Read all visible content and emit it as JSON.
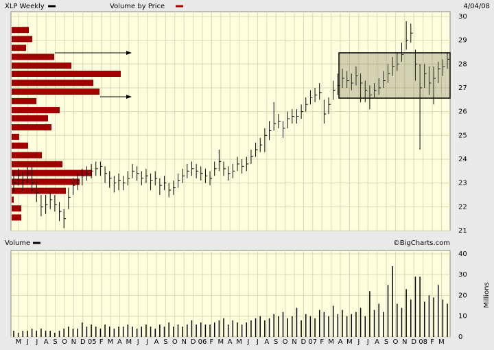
{
  "chart_data": [
    {
      "type": "ohlc",
      "title": "XLP Weekly",
      "legend_color": "#000000",
      "date": "4/04/08",
      "categories": [
        "M",
        "J",
        "J",
        "A",
        "S",
        "O",
        "N",
        "D",
        "05",
        "F",
        "M",
        "A",
        "M",
        "J",
        "J",
        "A",
        "S",
        "O",
        "N",
        "D",
        "06",
        "F",
        "M",
        "A",
        "M",
        "J",
        "J",
        "A",
        "S",
        "O",
        "N",
        "D",
        "07",
        "F",
        "M",
        "A",
        "M",
        "J",
        "J",
        "A",
        "S",
        "O",
        "N",
        "D",
        "08",
        "F",
        "M"
      ],
      "high": [
        23.5,
        23.6,
        23.5,
        23.7,
        23.7,
        23.1,
        22.5,
        22.5,
        22.6,
        22.5,
        22.2,
        21.9,
        22.8,
        23.2,
        23.4,
        23.6,
        23.7,
        23.8,
        23.9,
        23.9,
        23.7,
        23.5,
        23.3,
        23.4,
        23.3,
        23.5,
        23.8,
        23.7,
        23.5,
        23.6,
        23.4,
        23.5,
        23.2,
        23.3,
        23.0,
        23.1,
        23.4,
        23.6,
        23.8,
        23.9,
        23.8,
        23.7,
        23.6,
        23.5,
        23.9,
        24.4,
        23.9,
        23.7,
        23.8,
        24.1,
        24.0,
        24.1,
        24.4,
        24.7,
        24.9,
        25.3,
        25.6,
        26.4,
        25.9,
        25.6,
        26.0,
        26.1,
        26.1,
        26.3,
        26.6,
        26.9,
        27.0,
        27.2,
        26.5,
        26.6,
        27.3,
        27.6,
        27.8,
        27.7,
        27.6,
        27.9,
        27.6,
        27.3,
        27.1,
        27.2,
        27.4,
        27.7,
        28.0,
        28.3,
        28.5,
        28.9,
        29.8,
        29.7,
        28.6,
        28.0,
        28.0,
        27.9,
        27.9,
        28.1,
        28.2,
        28.5
      ],
      "low": [
        22.6,
        22.9,
        22.7,
        23.0,
        22.6,
        22.2,
        21.6,
        21.7,
        21.9,
        21.8,
        21.4,
        21.1,
        21.9,
        22.5,
        22.7,
        22.9,
        23.1,
        23.2,
        23.3,
        23.3,
        23.0,
        22.8,
        22.6,
        22.7,
        22.7,
        22.9,
        23.2,
        23.1,
        22.9,
        23.0,
        22.7,
        22.9,
        22.5,
        22.7,
        22.4,
        22.5,
        22.8,
        23.0,
        23.2,
        23.3,
        23.2,
        23.1,
        23.0,
        22.9,
        23.3,
        23.5,
        23.3,
        23.1,
        23.2,
        23.5,
        23.4,
        23.5,
        23.8,
        24.1,
        24.3,
        24.3,
        24.8,
        25.2,
        25.3,
        24.9,
        25.3,
        25.5,
        25.5,
        25.7,
        26.0,
        26.3,
        26.4,
        26.5,
        25.5,
        25.9,
        26.5,
        26.7,
        27.0,
        27.0,
        26.9,
        27.1,
        26.4,
        26.4,
        26.1,
        26.6,
        26.7,
        27.0,
        27.2,
        27.5,
        27.7,
        28.1,
        28.6,
        28.9,
        27.3,
        24.4,
        27.0,
        26.7,
        26.3,
        27.2,
        27.5,
        27.8
      ],
      "close": [
        23.0,
        23.3,
        23.1,
        23.4,
        23.0,
        22.6,
        22.0,
        22.1,
        22.3,
        22.1,
        21.8,
        21.5,
        22.4,
        22.9,
        23.1,
        23.3,
        23.4,
        23.5,
        23.6,
        23.7,
        23.4,
        23.2,
        23.0,
        23.1,
        23.0,
        23.2,
        23.5,
        23.4,
        23.2,
        23.3,
        23.1,
        23.2,
        22.9,
        23.0,
        22.7,
        22.8,
        23.1,
        23.3,
        23.5,
        23.6,
        23.5,
        23.4,
        23.3,
        23.2,
        23.6,
        23.9,
        23.6,
        23.4,
        23.5,
        23.8,
        23.7,
        23.8,
        24.1,
        24.4,
        24.6,
        25.0,
        25.2,
        25.5,
        25.6,
        25.3,
        25.7,
        25.8,
        25.8,
        26.0,
        26.3,
        26.6,
        26.7,
        26.8,
        25.9,
        26.3,
        26.9,
        27.1,
        27.4,
        27.3,
        27.2,
        27.5,
        27.2,
        26.9,
        26.7,
        26.9,
        27.0,
        27.3,
        27.6,
        27.9,
        28.0,
        28.4,
        29.0,
        29.3,
        28.0,
        27.0,
        27.6,
        27.2,
        27.4,
        27.8,
        27.9,
        28.2
      ],
      "volume_by_price": {
        "name": "Volume by Price",
        "color": "#a00000",
        "price_levels": [
          29.43,
          29.05,
          28.68,
          28.3,
          27.93,
          27.59,
          27.21,
          26.84,
          26.44,
          26.06,
          25.72,
          25.34,
          24.94,
          24.57,
          24.17,
          23.79,
          23.42,
          23.05,
          22.67,
          22.3,
          21.93,
          21.55
        ],
        "values": [
          25,
          30,
          21,
          62,
          87,
          159,
          119,
          128,
          36,
          70,
          53,
          58,
          11,
          24,
          44,
          74,
          117,
          99,
          79,
          3,
          14,
          14
        ]
      },
      "ylim": [
        21,
        30.2
      ],
      "yticks": [
        21,
        22,
        23,
        24,
        25,
        26,
        27,
        28,
        29,
        30
      ],
      "grid": true
    },
    {
      "type": "bar",
      "title": "Volume",
      "legend_color": "#000000",
      "credit": "©BigCharts.com",
      "ylabel": "Millions",
      "color": "#000000",
      "values": [
        3,
        2,
        3,
        3,
        4,
        3,
        4,
        3,
        3,
        2,
        3,
        4,
        5,
        4,
        4,
        7,
        5,
        6,
        5,
        4,
        6,
        5,
        4,
        5,
        5,
        6,
        5,
        4,
        5,
        6,
        5,
        4,
        6,
        5,
        7,
        5,
        6,
        5,
        6,
        8,
        6,
        7,
        6,
        6,
        7,
        8,
        9,
        6,
        8,
        7,
        6,
        7,
        8,
        9,
        10,
        8,
        9,
        11,
        10,
        12,
        9,
        10,
        14,
        8,
        11,
        10,
        9,
        13,
        12,
        10,
        15,
        11,
        13,
        10,
        11,
        12,
        14,
        10,
        22,
        13,
        16,
        12,
        25,
        34,
        16,
        14,
        23,
        18,
        29,
        29,
        17,
        20,
        19,
        25,
        18,
        16
      ],
      "ylim": [
        0,
        41.6
      ],
      "yticks": [
        0,
        10,
        20,
        30,
        40
      ],
      "grid": true
    }
  ]
}
